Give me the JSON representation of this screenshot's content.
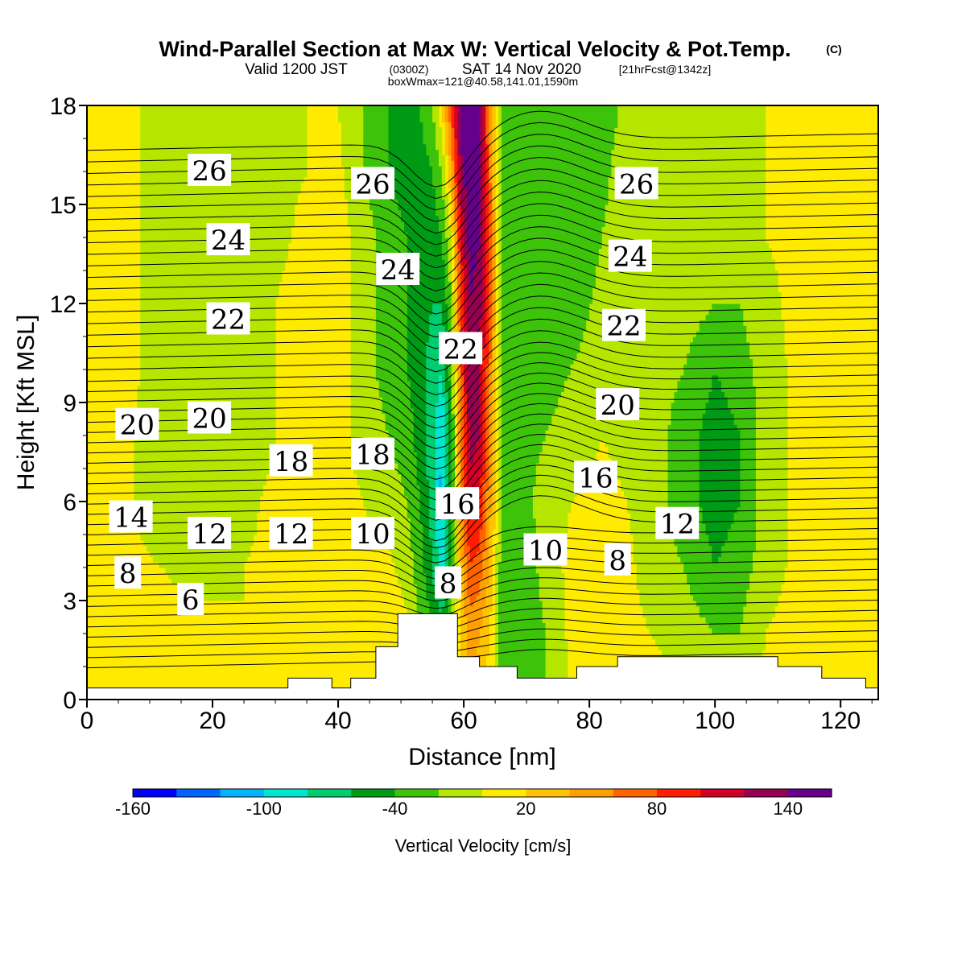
{
  "titles": {
    "main": "Wind-Parallel Section at Max W: Vertical Velocity & Pot.Temp.",
    "copyright": "(C)",
    "valid": "Valid 1200 JST",
    "valid_utc": "(0300Z)",
    "valid_date": "SAT 14 Nov 2020",
    "forecast": "[21hrFcst@1342z]",
    "boxmax": "boxWmax=121@40.58,141.01,1590m"
  },
  "chart_data": {
    "type": "heatmap",
    "xlabel": "Distance [nm]",
    "ylabel": "Height [Kft MSL]",
    "xlim": [
      0,
      126
    ],
    "ylim": [
      0,
      18
    ],
    "x_ticks": [
      "0",
      "20",
      "40",
      "60",
      "80",
      "100",
      "120"
    ],
    "y_ticks": [
      "0",
      "3",
      "6",
      "9",
      "12",
      "15",
      "18"
    ],
    "colorbar": {
      "label": "Vertical Velocity [cm/s]",
      "range": [
        -160,
        160
      ],
      "tick_labels": [
        "-160",
        "-100",
        "-40",
        "20",
        "80",
        "140"
      ],
      "colors": [
        "#0000ff",
        "#0064ff",
        "#00b4ff",
        "#00e6d2",
        "#00cd6e",
        "#009b14",
        "#3cc30a",
        "#b4e600",
        "#ffeb00",
        "#ffc300",
        "#ffa000",
        "#ff6400",
        "#ff1e00",
        "#d20028",
        "#960050",
        "#64008c"
      ]
    },
    "vertical_velocity_field": {
      "columns_distance_nm": [
        0,
        5,
        12,
        18,
        25,
        30,
        35,
        40,
        44,
        48,
        51,
        53,
        55,
        56.5,
        58,
        59.5,
        61,
        62.5,
        64,
        66,
        69,
        73,
        77,
        82,
        86,
        90,
        95,
        100,
        104,
        108,
        113,
        118,
        126
      ],
      "rows_height_kft": [
        0,
        2,
        4,
        6,
        8,
        10,
        12,
        14,
        16,
        18
      ],
      "values_cm_s": [
        [
          10,
          15,
          10,
          5,
          5,
          5,
          5,
          5,
          5,
          15,
          5,
          -10,
          -30,
          -40,
          -20,
          10,
          40,
          30,
          10,
          -20,
          -30,
          -20,
          0,
          5,
          5,
          10,
          0,
          -10,
          -10,
          5,
          10,
          10,
          10
        ],
        [
          5,
          10,
          5,
          5,
          0,
          5,
          10,
          15,
          10,
          20,
          5,
          -20,
          -40,
          -50,
          -10,
          20,
          50,
          40,
          20,
          -30,
          -40,
          -20,
          5,
          10,
          5,
          0,
          -10,
          -20,
          -20,
          0,
          10,
          10,
          10
        ],
        [
          5,
          5,
          0,
          -5,
          0,
          5,
          10,
          10,
          5,
          5,
          -10,
          -30,
          -60,
          -90,
          -40,
          30,
          80,
          70,
          40,
          -30,
          -40,
          -10,
          5,
          10,
          5,
          -10,
          -20,
          -40,
          -30,
          -10,
          5,
          10,
          10
        ],
        [
          5,
          5,
          -10,
          -15,
          -5,
          5,
          10,
          5,
          0,
          -10,
          -20,
          -40,
          -70,
          -110,
          -50,
          50,
          110,
          100,
          50,
          -20,
          -30,
          -10,
          0,
          5,
          0,
          -10,
          -30,
          -50,
          -40,
          -10,
          5,
          10,
          10
        ],
        [
          5,
          5,
          -10,
          -20,
          -15,
          0,
          10,
          5,
          -5,
          -20,
          -30,
          -50,
          -70,
          -100,
          -40,
          60,
          130,
          120,
          60,
          -20,
          -30,
          -20,
          -10,
          0,
          -5,
          -10,
          -30,
          -50,
          -40,
          -10,
          5,
          10,
          10
        ],
        [
          5,
          10,
          -10,
          -20,
          -15,
          0,
          10,
          10,
          -10,
          -30,
          -40,
          -50,
          -70,
          -80,
          -30,
          70,
          135,
          125,
          70,
          -20,
          -30,
          -30,
          -20,
          -10,
          -10,
          -10,
          -20,
          -40,
          -30,
          -10,
          5,
          10,
          10
        ],
        [
          5,
          10,
          -10,
          -20,
          -15,
          0,
          10,
          10,
          -10,
          -30,
          -40,
          -50,
          -60,
          -60,
          -20,
          80,
          140,
          130,
          80,
          -20,
          -30,
          -40,
          -30,
          -15,
          -10,
          -10,
          -10,
          -20,
          -20,
          -5,
          5,
          10,
          10
        ],
        [
          10,
          10,
          -10,
          -20,
          -15,
          -5,
          5,
          10,
          -10,
          -30,
          -40,
          -50,
          -50,
          -40,
          0,
          100,
          150,
          140,
          80,
          -20,
          -30,
          -40,
          -35,
          -20,
          -10,
          -10,
          -10,
          -15,
          -10,
          0,
          5,
          10,
          10
        ],
        [
          10,
          10,
          -10,
          -20,
          -15,
          -5,
          0,
          5,
          -20,
          -40,
          -50,
          -50,
          -40,
          -20,
          40,
          130,
          160,
          150,
          70,
          -20,
          -30,
          -40,
          -40,
          -25,
          -10,
          -10,
          -10,
          -10,
          -5,
          0,
          5,
          10,
          10
        ],
        [
          10,
          10,
          -10,
          -20,
          -15,
          -5,
          0,
          0,
          -20,
          -40,
          -50,
          -40,
          -20,
          20,
          80,
          150,
          165,
          150,
          60,
          -20,
          -30,
          -40,
          -40,
          -30,
          -15,
          -10,
          -10,
          -10,
          -5,
          0,
          5,
          10,
          10
        ]
      ]
    },
    "terrain_profile_kft": {
      "distance_nm": [
        0,
        32,
        32,
        39,
        39,
        42,
        42,
        46,
        46,
        49.5,
        49.5,
        59,
        59,
        62.5,
        62.5,
        68.5,
        68.5,
        78,
        78,
        84.5,
        84.5,
        110,
        110,
        117,
        117,
        124,
        124,
        126
      ],
      "height_kft": [
        0.35,
        0.35,
        0.65,
        0.65,
        0.35,
        0.35,
        0.65,
        0.65,
        1.6,
        1.6,
        2.6,
        2.6,
        1.3,
        1.3,
        1.0,
        1.0,
        0.65,
        0.65,
        1.0,
        1.0,
        1.3,
        1.3,
        1.0,
        1.0,
        0.65,
        0.65,
        0.35,
        0.35
      ]
    },
    "potential_temperature_contours": {
      "label_values_c": [
        6,
        8,
        10,
        12,
        14,
        16,
        18,
        20,
        22,
        24,
        26
      ]
    },
    "contour_labels": [
      {
        "text": "26",
        "x_nm": 19.5,
        "y_kft": 16.0
      },
      {
        "text": "26",
        "x_nm": 45.5,
        "y_kft": 15.6
      },
      {
        "text": "26",
        "x_nm": 87.5,
        "y_kft": 15.6
      },
      {
        "text": "24",
        "x_nm": 22.5,
        "y_kft": 13.9
      },
      {
        "text": "24",
        "x_nm": 49.5,
        "y_kft": 13.0
      },
      {
        "text": "24",
        "x_nm": 86.5,
        "y_kft": 13.4
      },
      {
        "text": "22",
        "x_nm": 22.5,
        "y_kft": 11.5
      },
      {
        "text": "22",
        "x_nm": 59.5,
        "y_kft": 10.6
      },
      {
        "text": "22",
        "x_nm": 85.5,
        "y_kft": 11.3
      },
      {
        "text": "20",
        "x_nm": 8.0,
        "y_kft": 8.3
      },
      {
        "text": "20",
        "x_nm": 19.5,
        "y_kft": 8.5
      },
      {
        "text": "20",
        "x_nm": 84.5,
        "y_kft": 8.9
      },
      {
        "text": "18",
        "x_nm": 32.5,
        "y_kft": 7.2
      },
      {
        "text": "18",
        "x_nm": 45.5,
        "y_kft": 7.4
      },
      {
        "text": "16",
        "x_nm": 81.0,
        "y_kft": 6.7
      },
      {
        "text": "16",
        "x_nm": 59.0,
        "y_kft": 5.9
      },
      {
        "text": "14",
        "x_nm": 7.0,
        "y_kft": 5.5
      },
      {
        "text": "12",
        "x_nm": 19.5,
        "y_kft": 5.0
      },
      {
        "text": "12",
        "x_nm": 32.5,
        "y_kft": 5.0
      },
      {
        "text": "12",
        "x_nm": 94.0,
        "y_kft": 5.3
      },
      {
        "text": "10",
        "x_nm": 45.5,
        "y_kft": 5.0
      },
      {
        "text": "10",
        "x_nm": 73.0,
        "y_kft": 4.5
      },
      {
        "text": "8",
        "x_nm": 6.5,
        "y_kft": 3.8
      },
      {
        "text": "8",
        "x_nm": 84.5,
        "y_kft": 4.2
      },
      {
        "text": "8",
        "x_nm": 57.5,
        "y_kft": 3.5
      },
      {
        "text": "6",
        "x_nm": 16.5,
        "y_kft": 3.0
      }
    ]
  }
}
